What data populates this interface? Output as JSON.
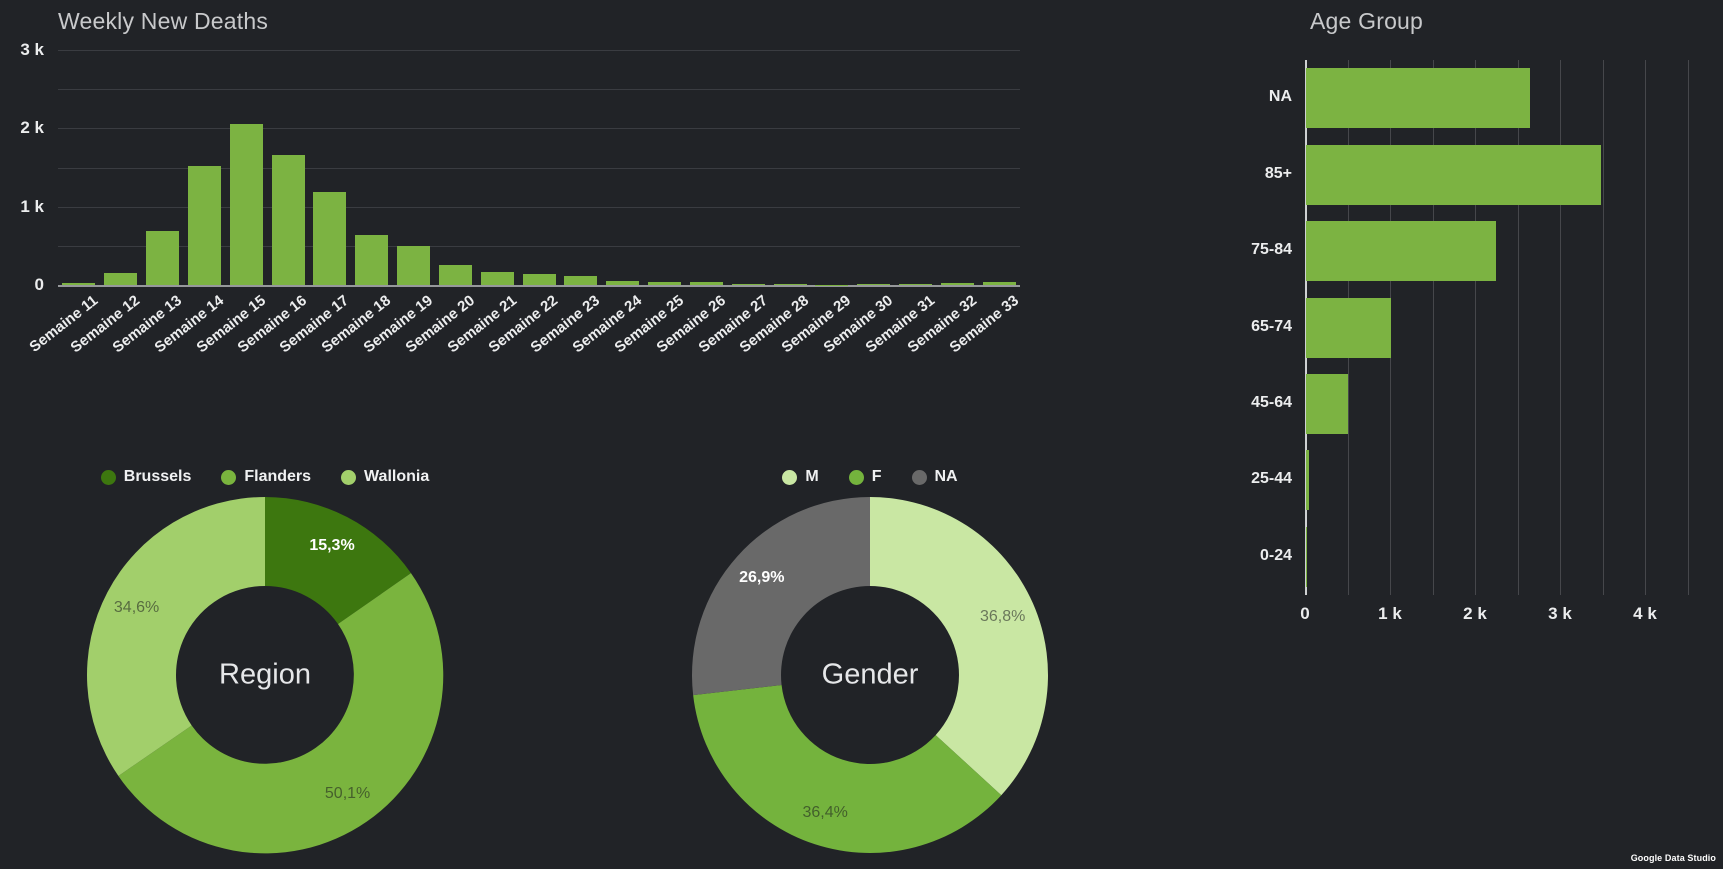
{
  "page": {
    "background": "#212327",
    "accent_green": "#7CB342",
    "footer_brand": "Google Data Studio"
  },
  "chart_data": [
    {
      "id": "weekly",
      "type": "bar",
      "title": "Weekly New Deaths",
      "bar_color": "#7CB342",
      "categories": [
        "Semaine 11",
        "Semaine 12",
        "Semaine 13",
        "Semaine 14",
        "Semaine 15",
        "Semaine 16",
        "Semaine 17",
        "Semaine 18",
        "Semaine 19",
        "Semaine 20",
        "Semaine 21",
        "Semaine 22",
        "Semaine 23",
        "Semaine 24",
        "Semaine 25",
        "Semaine 26",
        "Semaine 27",
        "Semaine 28",
        "Semaine 29",
        "Semaine 30",
        "Semaine 31",
        "Semaine 32",
        "Semaine 33"
      ],
      "values": [
        25,
        155,
        690,
        1520,
        2060,
        1660,
        1190,
        640,
        500,
        260,
        165,
        140,
        110,
        55,
        40,
        35,
        18,
        10,
        6,
        10,
        10,
        22,
        35
      ],
      "ylim": [
        0,
        3000
      ],
      "grid_step": 500,
      "grid": true,
      "legend_position": "none",
      "y_ticks": [
        {
          "label": "3 k",
          "value": 3000
        },
        {
          "label": "2 k",
          "value": 2000
        },
        {
          "label": "1 k",
          "value": 1000
        },
        {
          "label": "0",
          "value": 0
        }
      ]
    },
    {
      "id": "age",
      "type": "bar",
      "orientation": "horizontal",
      "title": "Age Group",
      "bar_color": "#7CB342",
      "categories": [
        "NA",
        "85+",
        "75-84",
        "65-74",
        "45-64",
        "25-44",
        "0-24"
      ],
      "values": [
        2630,
        3470,
        2230,
        1000,
        490,
        40,
        8
      ],
      "xlim": [
        0,
        4500
      ],
      "grid_step": 500,
      "grid": true,
      "legend_position": "none",
      "x_ticks": [
        {
          "label": "0",
          "value": 0
        },
        {
          "label": "1 k",
          "value": 1000
        },
        {
          "label": "2 k",
          "value": 2000
        },
        {
          "label": "3 k",
          "value": 3000
        },
        {
          "label": "4 k",
          "value": 4000
        }
      ]
    },
    {
      "id": "region",
      "type": "pie",
      "title": "Region",
      "center_label": "Region",
      "legend_position": "top",
      "slices": [
        {
          "label": "Brussels",
          "pct": 15.3,
          "display": "15,3%",
          "color": "#3D770F",
          "label_style": "light"
        },
        {
          "label": "Flanders",
          "pct": 50.1,
          "display": "50,1%",
          "color": "#7AB43E",
          "label_style": "dark"
        },
        {
          "label": "Wallonia",
          "pct": 34.6,
          "display": "34,6%",
          "color": "#A2CF6B",
          "label_style": "dark"
        }
      ]
    },
    {
      "id": "gender",
      "type": "pie",
      "title": "Gender",
      "center_label": "Gender",
      "legend_position": "top",
      "slices": [
        {
          "label": "M",
          "pct": 36.8,
          "display": "36,8%",
          "color": "#C9E7A3",
          "label_style": "dark"
        },
        {
          "label": "F",
          "pct": 36.4,
          "display": "36,4%",
          "color": "#74B33D",
          "label_style": "dark"
        },
        {
          "label": "NA",
          "pct": 26.9,
          "display": "26,9%",
          "color": "#696969",
          "label_style": "light"
        }
      ]
    }
  ]
}
